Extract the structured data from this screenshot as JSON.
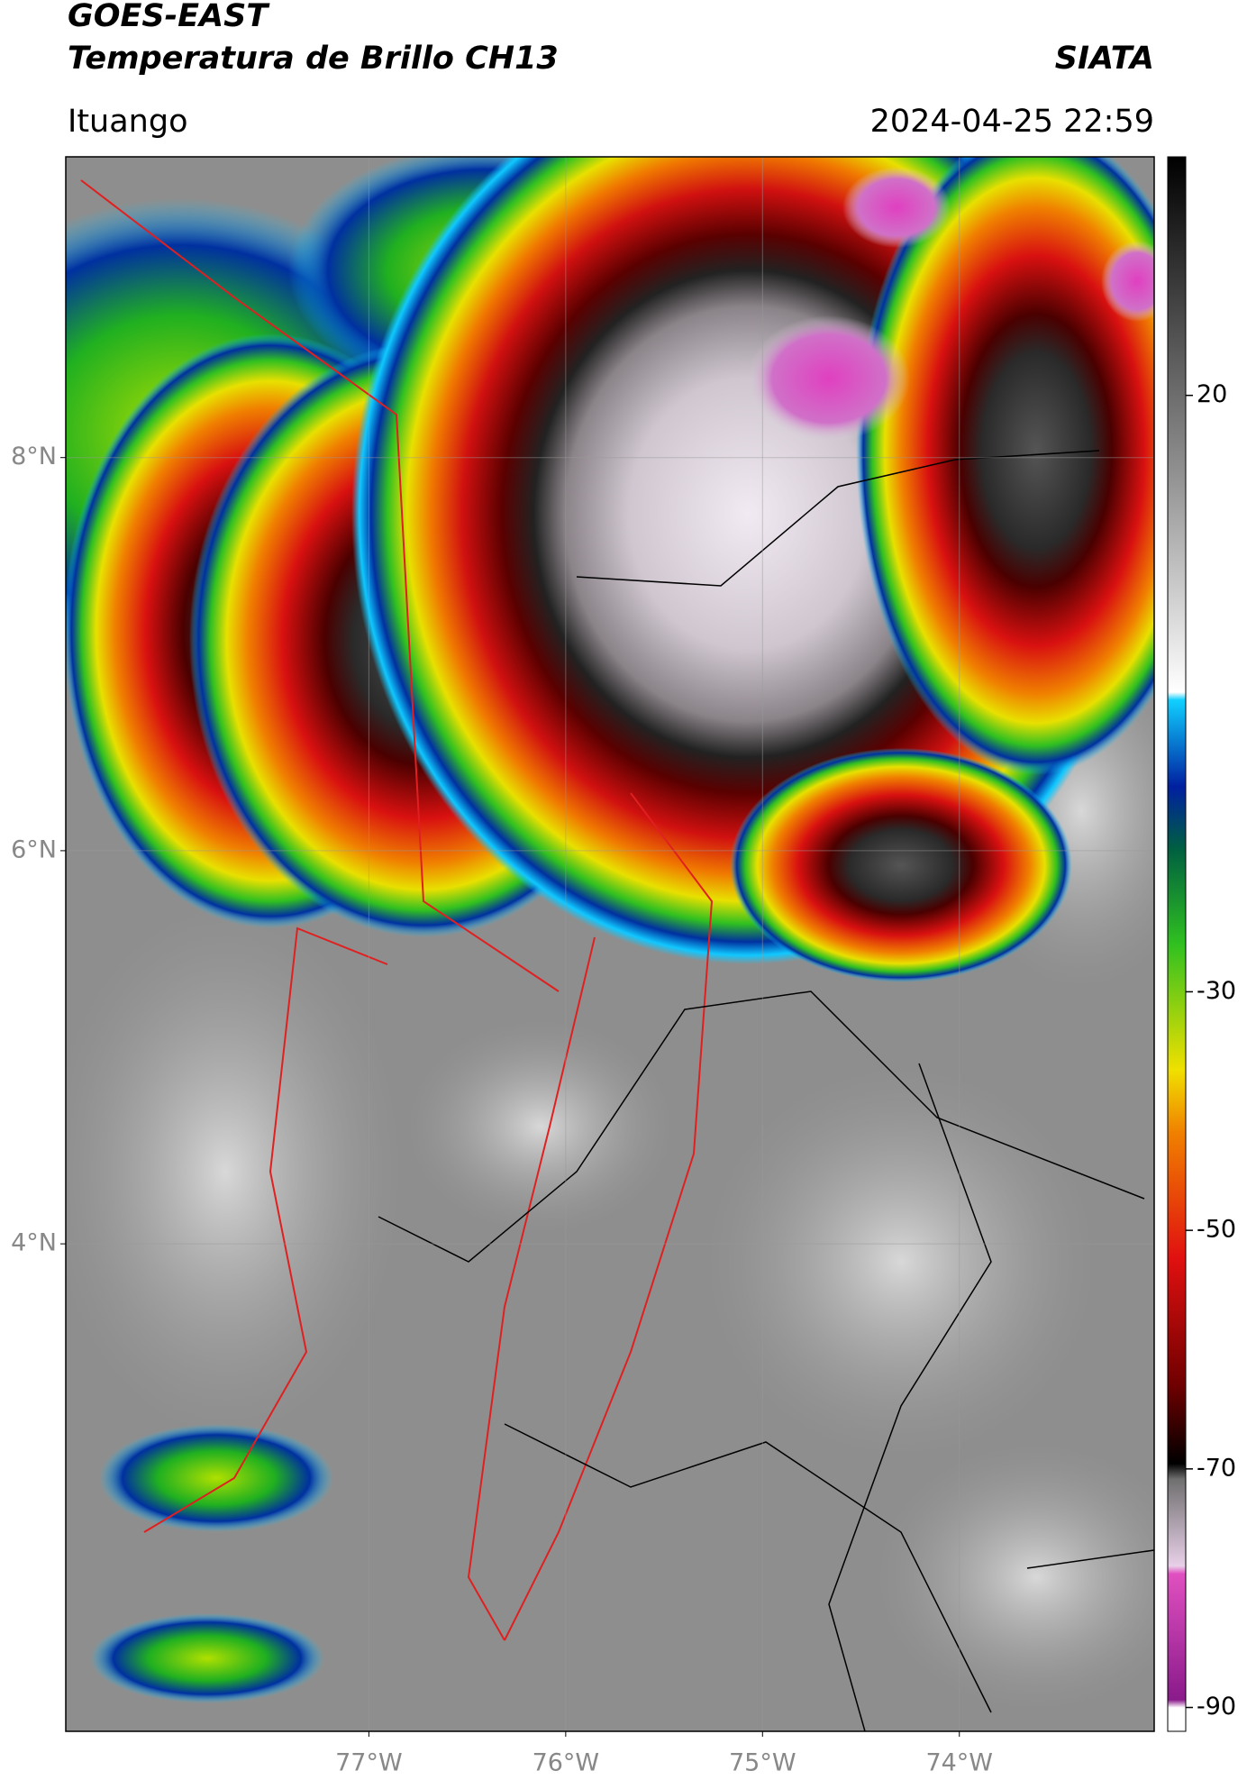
{
  "header": {
    "title": "GOES-EAST",
    "subtitle": "Temperatura de Brillo CH13",
    "brand": "SIATA",
    "location": "Ituango",
    "datetime": "2024-04-25 22:59"
  },
  "map": {
    "lon_lim": [
      -78.54,
      -73.01
    ],
    "lat_lim": [
      1.52,
      9.53
    ],
    "lon_ticks": [
      {
        "value": -77,
        "label": "77°W"
      },
      {
        "value": -76,
        "label": "76°W"
      },
      {
        "value": -75,
        "label": "75°W"
      },
      {
        "value": -74,
        "label": "74°W"
      }
    ],
    "lat_ticks": [
      {
        "value": 8,
        "label": "8°N"
      },
      {
        "value": 6,
        "label": "6°N"
      },
      {
        "value": 4,
        "label": "4°N"
      }
    ],
    "grid": true
  },
  "colorbar": {
    "lim": [
      -92,
      40
    ],
    "ticks": [
      20,
      -30,
      -50,
      -70,
      -90
    ]
  }
}
